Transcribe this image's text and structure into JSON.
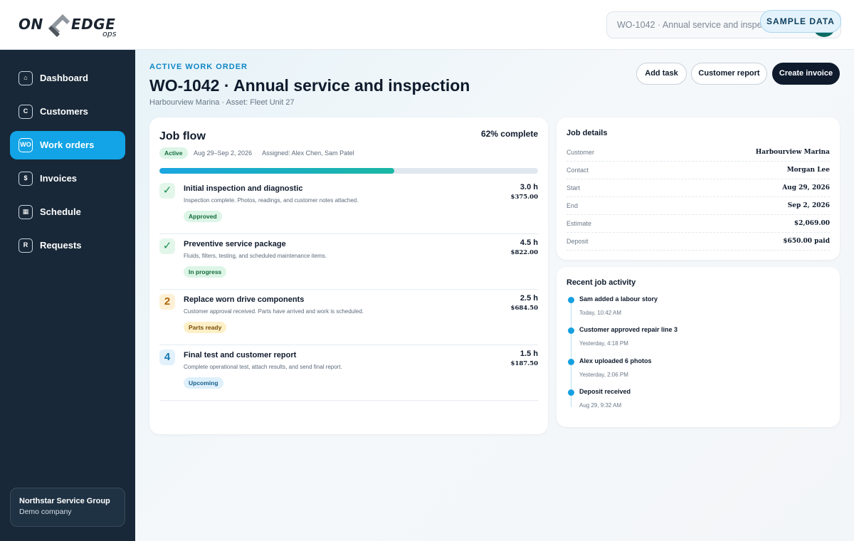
{
  "app": {
    "logo_on": "ON",
    "logo_edge": "EDGE",
    "logo_ops": "ops",
    "search_value": "WO-1042 · Annual service and inspection",
    "sample_badge": "SAMPLE DATA"
  },
  "sidebar": {
    "items": [
      {
        "icon": "⌂",
        "label": "Dashboard",
        "active": false
      },
      {
        "icon": "C",
        "label": "Customers",
        "active": false
      },
      {
        "icon": "WO",
        "label": "Work orders",
        "active": true
      },
      {
        "icon": "$",
        "label": "Invoices",
        "active": false
      },
      {
        "icon": "▦",
        "label": "Schedule",
        "active": false
      },
      {
        "icon": "R",
        "label": "Requests",
        "active": false
      }
    ],
    "company": {
      "name": "Northstar Service Group",
      "sub": "Demo company"
    }
  },
  "header": {
    "eyebrow": "ACTIVE WORK ORDER",
    "title": "WO-1042 · Annual service and inspection",
    "subtitle": "Harbourview Marina · Asset: Fleet Unit 27",
    "buttons": {
      "add_task": "Add task",
      "customer_report": "Customer report",
      "create_invoice": "Create invoice"
    }
  },
  "flow": {
    "title": "Job flow",
    "percent_label": "62% complete",
    "percent": 62,
    "status": "Active",
    "dates": "Aug 29–Sep 2, 2026",
    "assigned": "Assigned: Alex Chen, Sam Patel",
    "tasks": [
      {
        "icon": "✓",
        "title": "Initial inspection and diagnostic",
        "desc": "Inspection complete. Photos, readings, and customer notes attached.",
        "hours": "3.0 h",
        "cost": "$375.00",
        "status": "Approved"
      },
      {
        "icon": "✓",
        "title": "Preventive service package",
        "desc": "Fluids, filters, testing, and scheduled maintenance items.",
        "hours": "4.5 h",
        "cost": "$822.00",
        "status": "In progress"
      },
      {
        "icon": "2",
        "title": "Replace worn drive components",
        "desc": "Customer approval received. Parts have arrived and work is scheduled.",
        "hours": "2.5 h",
        "cost": "$684.50",
        "status": "Parts ready"
      },
      {
        "icon": "4",
        "title": "Final test and customer report",
        "desc": "Complete operational test, attach results, and send final report.",
        "hours": "1.5 h",
        "cost": "$187.50",
        "status": "Upcoming"
      }
    ]
  },
  "details": {
    "title": "Job details",
    "rows": [
      {
        "key": "Customer",
        "value": "Harbourview Marina"
      },
      {
        "key": "Contact",
        "value": "Morgan Lee"
      },
      {
        "key": "Start",
        "value": "Aug 29, 2026"
      },
      {
        "key": "End",
        "value": "Sep 2, 2026"
      },
      {
        "key": "Estimate",
        "value": "$2,069.00"
      },
      {
        "key": "Deposit",
        "value": "$650.00 paid"
      }
    ]
  },
  "activity": {
    "title": "Recent job activity",
    "items": [
      {
        "title": "Sam added a labour story",
        "time": "Today, 10:42 AM"
      },
      {
        "title": "Customer approved repair line 3",
        "time": "Yesterday, 4:18 PM"
      },
      {
        "title": "Alex uploaded 6 photos",
        "time": "Yesterday, 2:06 PM"
      },
      {
        "title": "Deposit received",
        "time": "Aug 29, 9:32 AM"
      }
    ]
  },
  "colors": {
    "accent": "#12a4e6",
    "sidebar": "#182838",
    "primary_button": "#0f1b2d"
  }
}
